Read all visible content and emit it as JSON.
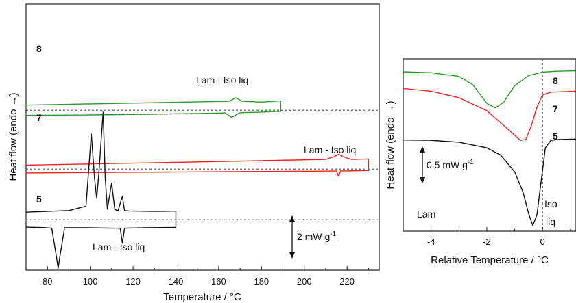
{
  "colors": {
    "sample_8": "#2a9a2a",
    "sample_7": "#ee2222",
    "sample_5": "#111111",
    "frame": "#222222"
  },
  "chart_data": [
    {
      "type": "line",
      "title": "",
      "xlabel": "Temperature / °C",
      "ylabel": "Heat flow (endo →)",
      "xlim": [
        70,
        235
      ],
      "xticks": [
        80,
        100,
        120,
        140,
        160,
        180,
        200,
        220
      ],
      "y_axis_ticks": false,
      "grid": false,
      "legend": "none",
      "scale_bar": {
        "text": "2 mW g",
        "superscript": "-1"
      },
      "series": [
        {
          "name": "8",
          "heating": {
            "x": [
              70,
              100,
              140,
              165,
              168,
              171,
              180,
              189
            ],
            "y": [
              74.5,
              75.1,
              75.9,
              76.4,
              78.2,
              76.4,
              76.0,
              76.6
            ]
          },
          "cooling": {
            "x": [
              189,
              180,
              170,
              166,
              163,
              160,
              130,
              100,
              70
            ],
            "y": [
              71.4,
              71.0,
              70.7,
              68.4,
              70.6,
              70.5,
              70.0,
              69.6,
              69.4
            ]
          },
          "transition_label": "Lam - Iso liq"
        },
        {
          "name": "7",
          "heating": {
            "x": [
              70,
              100,
              140,
              180,
              210,
              214,
              216,
              218,
              222,
              230
            ],
            "y": [
              44.5,
              45.1,
              45.9,
              46.7,
              47.4,
              48.8,
              50.0,
              48.8,
              47.4,
              47.6
            ]
          },
          "cooling": {
            "x": [
              230,
              220,
              217,
              216,
              215,
              210,
              160,
              100,
              70
            ],
            "y": [
              41.8,
              41.6,
              41.6,
              38.9,
              41.6,
              41.5,
              41.2,
              40.8,
              40.6
            ]
          },
          "transition_label": "Lam - Iso liq"
        },
        {
          "name": "5",
          "heating": {
            "x": [
              70,
              90,
              98,
              100.5,
              102,
              103,
              104,
              106,
              107,
              108,
              110,
              111.5,
              113,
              115,
              116,
              118,
              130,
              140
            ],
            "y": [
              21.0,
              21.8,
              24.0,
              60.0,
              38.0,
              28.0,
              40.0,
              71.0,
              38.0,
              22.5,
              35.5,
              22.3,
              21.8,
              29.0,
              21.8,
              21.6,
              21.4,
              21.5
            ]
          },
          "cooling": {
            "x": [
              140,
              125,
              116,
              115,
              114,
              110,
              100,
              88,
              86,
              85,
              84,
              82,
              78,
              70
            ],
            "y": [
              13.4,
              13.2,
              13.0,
              5.5,
              13.0,
              13.0,
              13.2,
              13.2,
              0.0,
              -7.0,
              0.0,
              13.0,
              13.3,
              13.5
            ]
          },
          "transition_label": "Lam - Iso liq"
        }
      ]
    },
    {
      "type": "line",
      "title": "",
      "xlabel": "Relative Temperature / °C",
      "ylabel": "Heat flow (endo →)",
      "xlim": [
        -5,
        1.2
      ],
      "xticks": [
        -4,
        -2,
        0
      ],
      "y_axis_ticks": false,
      "grid": false,
      "legend": "none",
      "scale_bar": {
        "text": "0.5 mW g",
        "superscript": "-1"
      },
      "region_labels": {
        "left": "Lam",
        "right": "Iso",
        "right2": "liq"
      },
      "series": [
        {
          "name": "8",
          "x": [
            -5,
            -4,
            -3,
            -2.5,
            -2,
            -1.7,
            -1.4,
            -1,
            -0.5,
            0,
            0.5,
            1.2
          ],
          "y": [
            83.0,
            82.5,
            80.5,
            76.0,
            66.0,
            63.5,
            66.5,
            75.5,
            81.0,
            82.8,
            83.3,
            83.5
          ]
        },
        {
          "name": "7",
          "x": [
            -5,
            -4,
            -3,
            -2,
            -1.2,
            -0.8,
            -0.6,
            -0.4,
            -0.2,
            0,
            0.3,
            1.2
          ],
          "y": [
            74.0,
            72.5,
            69.0,
            62.0,
            51.5,
            46.0,
            46.5,
            54.0,
            64.0,
            70.5,
            72.0,
            72.5
          ]
        },
        {
          "name": "5",
          "x": [
            -5,
            -4,
            -3,
            -2,
            -1.5,
            -1,
            -0.7,
            -0.5,
            -0.35,
            -0.2,
            -0.05,
            0.1,
            0.3,
            0.6,
            1.2
          ],
          "y": [
            46.2,
            46.0,
            45.0,
            42.0,
            38.0,
            29.0,
            18.0,
            6.5,
            0.0,
            6.0,
            24.0,
            42.0,
            46.0,
            46.5,
            46.7
          ]
        }
      ]
    }
  ]
}
